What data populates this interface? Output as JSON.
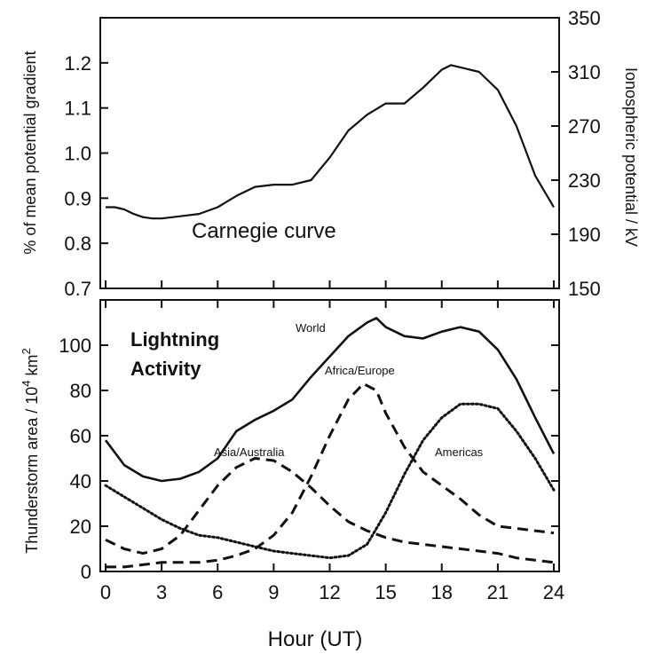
{
  "chart_data": [
    {
      "type": "line",
      "panel": "top",
      "annotation": "Carnegie curve",
      "ylabel": "% of mean potential gradient",
      "y2label": "Ionospheric potential / kV",
      "xlim": [
        0,
        24
      ],
      "ylim": [
        0.7,
        1.3
      ],
      "yticks": [
        0.7,
        0.8,
        0.9,
        1.0,
        1.1,
        1.2
      ],
      "ytick_labels": [
        "0.7",
        "0.8",
        "0.9",
        "1.0",
        "1.1",
        "1.2"
      ],
      "y2lim": [
        150,
        350
      ],
      "y2ticks": [
        150,
        190,
        230,
        270,
        310,
        350
      ],
      "xticks": [
        0,
        3,
        6,
        9,
        12,
        15,
        18,
        21,
        24
      ],
      "series": [
        {
          "name": "Carnegie curve",
          "style": "solid",
          "x": [
            0,
            0.5,
            1,
            1.5,
            2,
            2.5,
            3,
            4,
            5,
            6,
            7,
            8,
            9,
            10,
            11,
            12,
            13,
            14,
            15,
            16,
            17,
            18,
            18.5,
            19,
            20,
            21,
            22,
            23,
            24
          ],
          "y": [
            0.88,
            0.88,
            0.875,
            0.865,
            0.858,
            0.855,
            0.855,
            0.86,
            0.865,
            0.88,
            0.905,
            0.925,
            0.93,
            0.93,
            0.94,
            0.99,
            1.05,
            1.085,
            1.11,
            1.11,
            1.145,
            1.185,
            1.195,
            1.19,
            1.18,
            1.14,
            1.06,
            0.95,
            0.88
          ]
        }
      ]
    },
    {
      "type": "line",
      "panel": "bottom",
      "annotation_line1": "Lightning",
      "annotation_line2": "Activity",
      "ylabel": "Thunderstorm area / 10",
      "ylabel_sup": "4",
      "ylabel_tail": " km",
      "ylabel_sup2": "2",
      "xlabel": "Hour (UT)",
      "xlim": [
        0,
        24
      ],
      "ylim": [
        0,
        120
      ],
      "yticks": [
        0,
        20,
        40,
        60,
        80,
        100
      ],
      "ytick_labels": [
        "0",
        "20",
        "40",
        "60",
        "80",
        "100"
      ],
      "xticks": [
        0,
        3,
        6,
        9,
        12,
        15,
        18,
        21,
        24
      ],
      "xtick_labels": [
        "0",
        "3",
        "6",
        "9",
        "12",
        "15",
        "18",
        "21",
        "24"
      ],
      "series": [
        {
          "name": "World",
          "style": "solid",
          "x": [
            0,
            1,
            2,
            3,
            4,
            5,
            6,
            7,
            8,
            9,
            10,
            11,
            12,
            13,
            14,
            14.5,
            15,
            16,
            17,
            18,
            19,
            20,
            21,
            22,
            23,
            24
          ],
          "y": [
            58,
            47,
            42,
            40,
            41,
            44,
            50,
            62,
            67,
            71,
            76,
            86,
            95,
            104,
            110,
            112,
            108,
            104,
            103,
            106,
            108,
            106,
            98,
            85,
            68,
            52
          ]
        },
        {
          "name": "Africa/Europe",
          "style": "dashed",
          "x": [
            0,
            1,
            2,
            3,
            4,
            5,
            6,
            7,
            8,
            9,
            10,
            11,
            12,
            13,
            13.8,
            14.5,
            15,
            16,
            17,
            18,
            19,
            20,
            21,
            22,
            23,
            24
          ],
          "y": [
            2,
            2,
            3,
            4,
            4,
            4,
            5,
            7,
            10,
            16,
            26,
            42,
            60,
            76,
            83,
            80,
            70,
            55,
            44,
            38,
            32,
            25,
            20,
            19,
            18,
            17
          ]
        },
        {
          "name": "Asia/Australia",
          "style": "dashed",
          "x": [
            0,
            1,
            2,
            3,
            4,
            5,
            6,
            7,
            8,
            9,
            10,
            11,
            12,
            13,
            14,
            15,
            16,
            17,
            18,
            19,
            20,
            21,
            22,
            23,
            24
          ],
          "y": [
            14,
            10,
            8,
            10,
            16,
            27,
            38,
            46,
            50,
            49,
            44,
            37,
            29,
            22,
            18,
            15,
            13,
            12,
            11,
            10,
            9,
            8,
            6,
            5,
            4
          ]
        },
        {
          "name": "Americas",
          "style": "dotted",
          "x": [
            0,
            1,
            2,
            3,
            4,
            5,
            6,
            7,
            8,
            9,
            10,
            11,
            12,
            13,
            14,
            15,
            16,
            17,
            18,
            19,
            20,
            21,
            22,
            23,
            24
          ],
          "y": [
            38,
            33,
            28,
            23,
            19,
            16,
            15,
            13,
            11,
            9,
            8,
            7,
            6,
            7,
            12,
            26,
            43,
            58,
            68,
            74,
            74,
            72,
            62,
            50,
            36
          ]
        }
      ]
    }
  ]
}
